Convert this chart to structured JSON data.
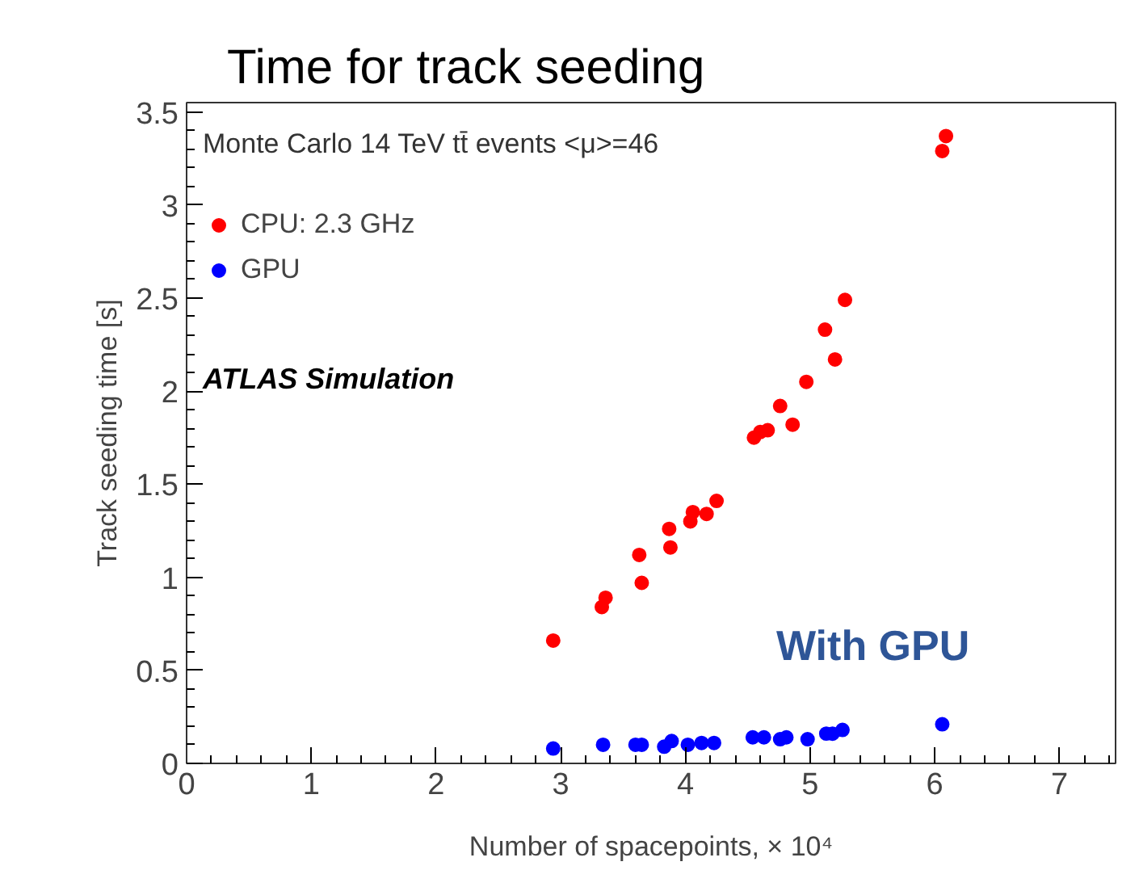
{
  "chart_data": {
    "type": "scatter",
    "title": "Time for track seeding",
    "xlabel": "Number of spacepoints, × 10⁴",
    "ylabel": "Track seeding time [s]",
    "annotations": [
      "Monte Carlo 14 TeV tt̄ events <μ>=46",
      "ATLAS Simulation",
      "With GPU"
    ],
    "xlim": [
      0,
      7.45
    ],
    "ylim": [
      0,
      3.55
    ],
    "xticks": [
      0,
      1,
      2,
      3,
      4,
      5,
      6,
      7
    ],
    "yticks": [
      0,
      0.5,
      1,
      1.5,
      2,
      2.5,
      3,
      3.5
    ],
    "grid": false,
    "legend": "top left",
    "marker": "circle",
    "series": [
      {
        "name": "CPU: 2.3 GHz",
        "color": "#ff0000",
        "x": [
          2.94,
          3.33,
          3.36,
          3.63,
          3.65,
          3.87,
          3.88,
          4.04,
          4.06,
          4.17,
          4.25,
          4.55,
          4.6,
          4.66,
          4.76,
          4.86,
          4.97,
          5.12,
          5.2,
          5.28,
          6.06,
          6.09
        ],
        "values": [
          0.66,
          0.84,
          0.89,
          1.12,
          0.97,
          1.26,
          1.16,
          1.3,
          1.35,
          1.34,
          1.41,
          1.75,
          1.78,
          1.79,
          1.92,
          1.82,
          2.05,
          2.33,
          2.17,
          2.49,
          3.29,
          3.37
        ]
      },
      {
        "name": "GPU",
        "color": "#0000ff",
        "x": [
          2.94,
          3.34,
          3.6,
          3.65,
          3.83,
          3.89,
          4.02,
          4.13,
          4.23,
          4.54,
          4.63,
          4.76,
          4.81,
          4.98,
          5.13,
          5.18,
          5.26,
          6.06
        ],
        "values": [
          0.08,
          0.1,
          0.1,
          0.1,
          0.09,
          0.12,
          0.1,
          0.11,
          0.11,
          0.14,
          0.14,
          0.13,
          0.14,
          0.13,
          0.16,
          0.16,
          0.18,
          0.21
        ]
      }
    ]
  }
}
